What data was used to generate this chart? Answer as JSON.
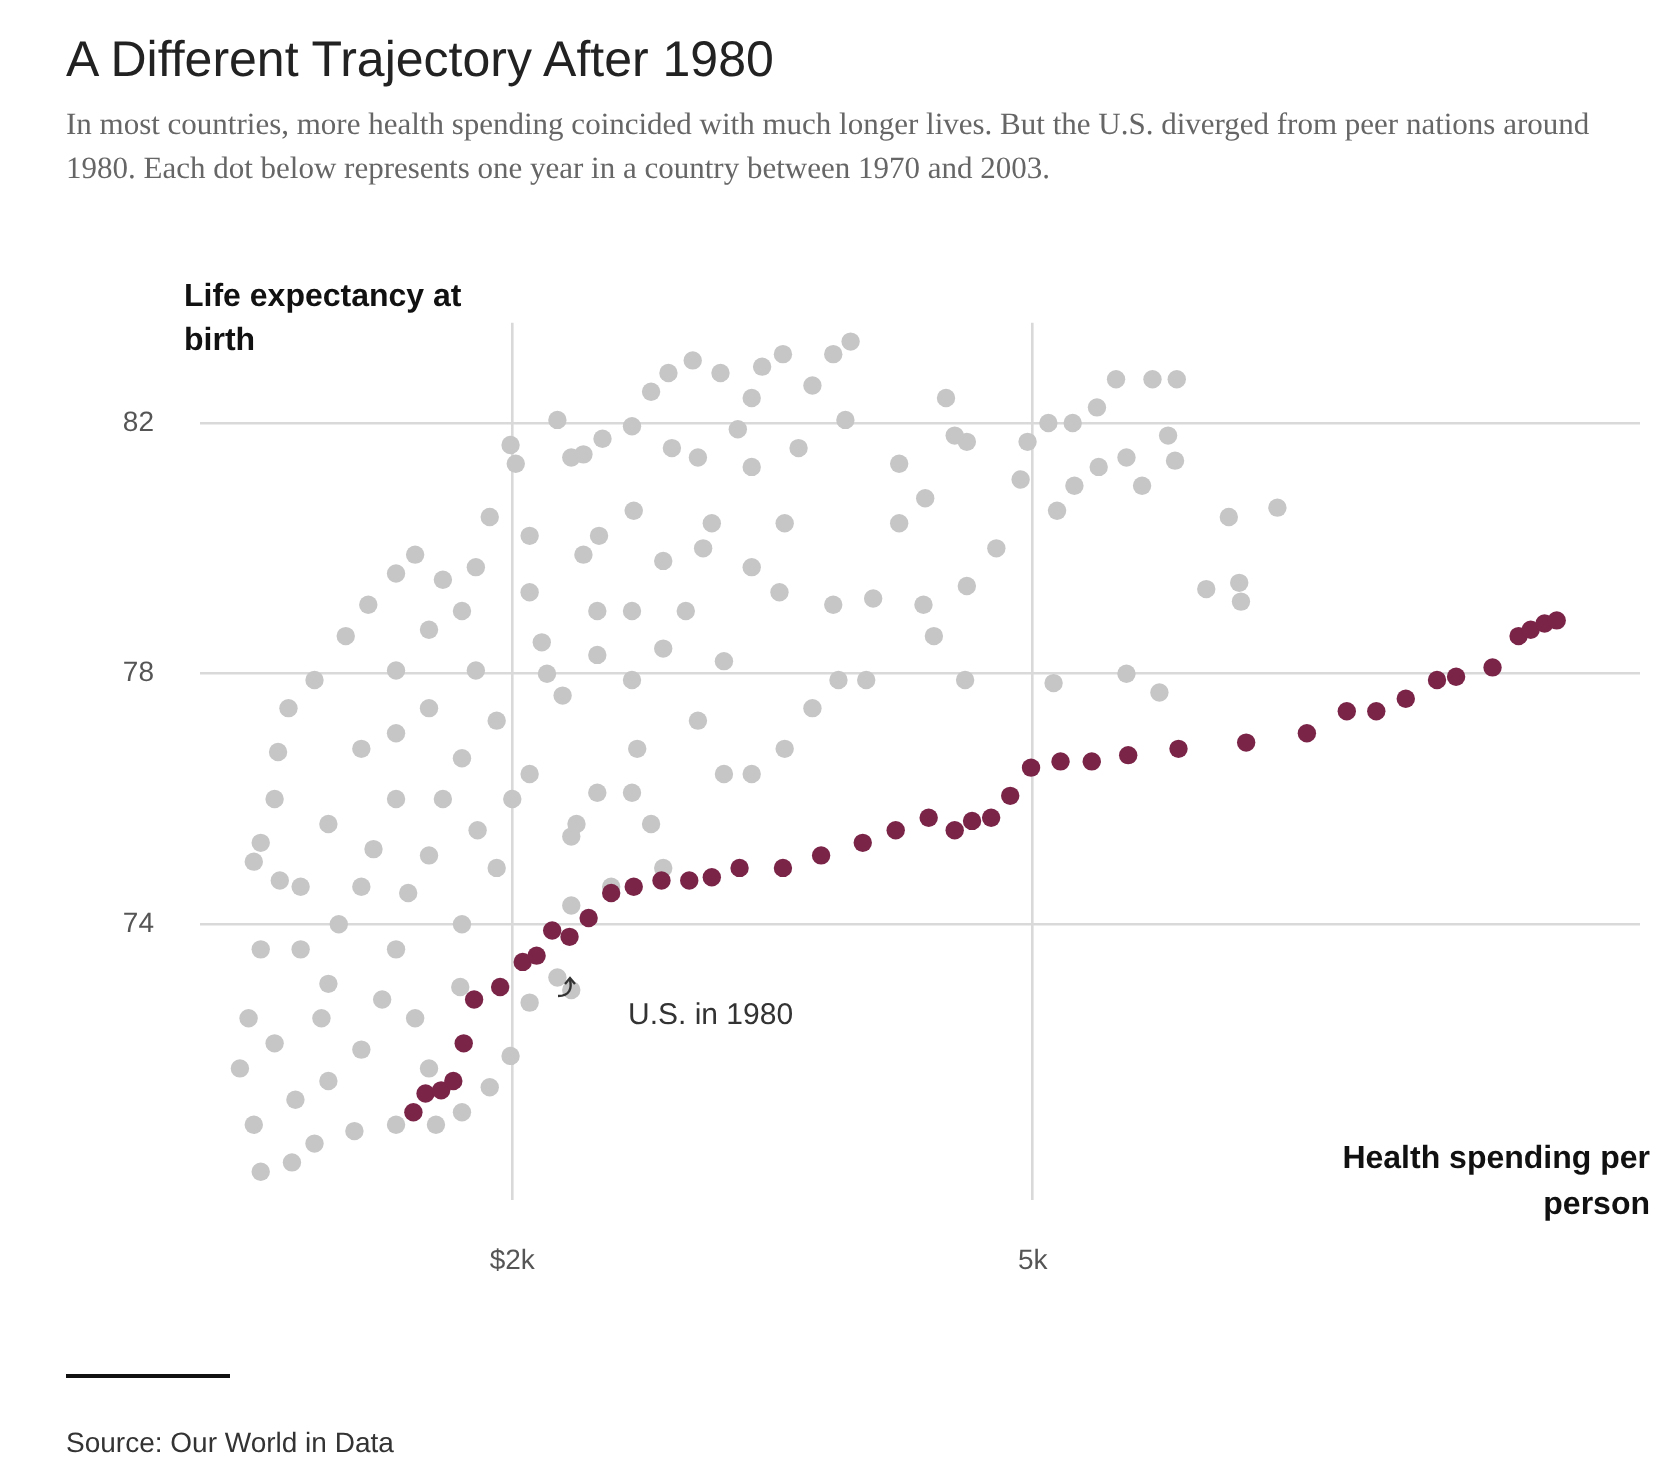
{
  "chart_data": {
    "type": "scatter",
    "title": "A Different Trajectory After 1980",
    "subtitle": "In most countries, more health spending coincided with much longer lives. But the U.S. diverged from peer nations around 1980. Each dot below represents one year in a country between 1970 and 2003.",
    "xlabel": "Health spending per person",
    "ylabel": "Life expectancy at birth",
    "xlim": [
      200,
      8500
    ],
    "ylim": [
      69.6,
      83.6
    ],
    "xticks": [
      {
        "value": 2000,
        "label": "$2k"
      },
      {
        "value": 5000,
        "label": "5k"
      }
    ],
    "yticks": [
      74,
      78,
      82
    ],
    "grid": true,
    "legend": false,
    "marker": "circle",
    "series": [
      {
        "color": "#c6c6c6",
        "x": [
          1440,
          1330,
          1170,
          1040,
          860,
          710,
          650,
          630,
          550,
          510,
          660,
          550,
          480,
          430,
          510,
          550,
          730,
          860,
          1090,
          1330,
          940,
          1130,
          1440,
          940,
          1330,
          1710,
          1130,
          1520,
          1910,
          940,
          1330,
          1710,
          2100,
          1130,
          1520,
          1910,
          2290,
          1330,
          1790,
          2170,
          1710,
          2100,
          1790,
          1870,
          2020,
          1990,
          2340,
          2410,
          2490,
          2690,
          2720,
          2490,
          2800,
          2340,
          2870,
          2570,
          2340,
          2100,
          2260,
          1990,
          1870,
          1710,
          1560,
          2340,
          1520,
          630,
          780,
          780,
          1330,
          1520,
          3950,
          3560,
          3440,
          3850,
          3040,
          3200,
          5480,
          5690,
          5830,
          5370,
          5230,
          5090,
          4970,
          5780,
          5820,
          5540,
          5380,
          5240,
          5140,
          5630,
          6130,
          6410,
          6000,
          6200,
          6190,
          5540,
          5730,
          5120,
          4610,
          4930,
          4620,
          4550,
          4620,
          4430,
          4370,
          4790,
          4380,
          4230,
          4040,
          3880,
          3730,
          3570,
          3380,
          3220,
          3070,
          2690,
          2370,
          3850,
          3540,
          3380,
          3570,
          3650,
          3380,
          3070,
          2920,
          2800,
          2690,
          2520,
          2410,
          2260,
          3920,
          3730,
          3380,
          3150,
          2870,
          2690,
          2490,
          2870,
          3220,
          4080,
          4230,
          1600,
          1800,
          2000,
          2200,
          2500,
          2700,
          3000,
          1200,
          1400,
          1700,
          900,
          1000,
          1600,
          2100,
          3300,
          4500,
          1250,
          750,
          2900,
          3100
        ],
        "values": [
          79.9,
          79.6,
          79.1,
          78.6,
          77.9,
          77.45,
          76.75,
          76.0,
          75.3,
          75.0,
          74.7,
          73.6,
          72.5,
          71.7,
          70.8,
          70.05,
          70.2,
          70.5,
          70.7,
          70.8,
          71.5,
          72.0,
          72.5,
          73.05,
          73.6,
          74.0,
          74.6,
          75.1,
          74.9,
          75.6,
          76.0,
          76.65,
          76.4,
          76.8,
          77.45,
          77.25,
          77.65,
          78.05,
          78.05,
          78.5,
          79.0,
          79.3,
          79.7,
          80.5,
          81.35,
          81.65,
          81.45,
          79.9,
          79.0,
          77.9,
          76.8,
          76.1,
          75.6,
          75.4,
          74.9,
          74.6,
          74.3,
          72.75,
          73.15,
          71.9,
          71.4,
          71.0,
          70.8,
          72.95,
          71.7,
          72.1,
          73.6,
          74.6,
          77.05,
          78.7,
          83.3,
          83.1,
          82.9,
          83.1,
          83.0,
          82.8,
          82.7,
          82.7,
          82.7,
          82.25,
          82.0,
          82.0,
          81.7,
          81.8,
          81.4,
          81.45,
          81.3,
          81.0,
          80.6,
          81.0,
          80.5,
          80.65,
          79.35,
          79.15,
          79.45,
          78.0,
          77.7,
          77.85,
          77.9,
          81.1,
          81.7,
          81.8,
          79.4,
          78.6,
          79.1,
          80.0,
          80.8,
          81.35,
          77.9,
          77.9,
          77.45,
          76.8,
          76.4,
          76.4,
          77.25,
          76.1,
          75.6,
          79.1,
          79.3,
          79.7,
          80.4,
          81.6,
          81.3,
          81.45,
          81.6,
          82.5,
          81.95,
          81.75,
          81.5,
          82.05,
          82.05,
          82.6,
          82.4,
          80.4,
          79.8,
          79.0,
          78.3,
          78.4,
          78.2,
          79.2,
          80.4,
          76.0,
          75.5,
          76.0,
          78.0,
          80.2,
          80.6,
          79.0,
          75.2,
          74.5,
          73.0,
          72.5,
          74.0,
          79.5,
          80.2,
          81.9,
          82.4,
          72.8,
          71.2,
          82.8,
          80.0
        ]
      },
      {
        "color": "#7a2448",
        "x": [
          1430,
          1500,
          1590,
          1660,
          1720,
          1780,
          1930,
          2060,
          2140,
          2230,
          2330,
          2440,
          2570,
          2700,
          2860,
          3020,
          3150,
          3310,
          3560,
          3780,
          4020,
          4210,
          4400,
          4550,
          4650,
          4760,
          4870,
          4990,
          5160,
          5340,
          5550,
          5840,
          6230,
          6580,
          6810,
          6980,
          7150,
          7330,
          7440,
          7650,
          7800,
          7870,
          7950,
          8020
        ],
        "values": [
          71.0,
          71.3,
          71.35,
          71.5,
          72.1,
          72.8,
          73.0,
          73.4,
          73.5,
          73.9,
          73.8,
          74.1,
          74.5,
          74.6,
          74.7,
          74.7,
          74.75,
          74.9,
          74.9,
          75.1,
          75.3,
          75.5,
          75.7,
          75.5,
          75.65,
          75.7,
          76.05,
          76.5,
          76.6,
          76.6,
          76.7,
          76.8,
          76.9,
          77.05,
          77.4,
          77.4,
          77.6,
          77.9,
          77.95,
          78.1,
          78.6,
          78.7,
          78.8,
          78.85
        ]
      }
    ],
    "annotations": [
      "U.S. in 1980",
      "Source: Our World in Data"
    ]
  }
}
